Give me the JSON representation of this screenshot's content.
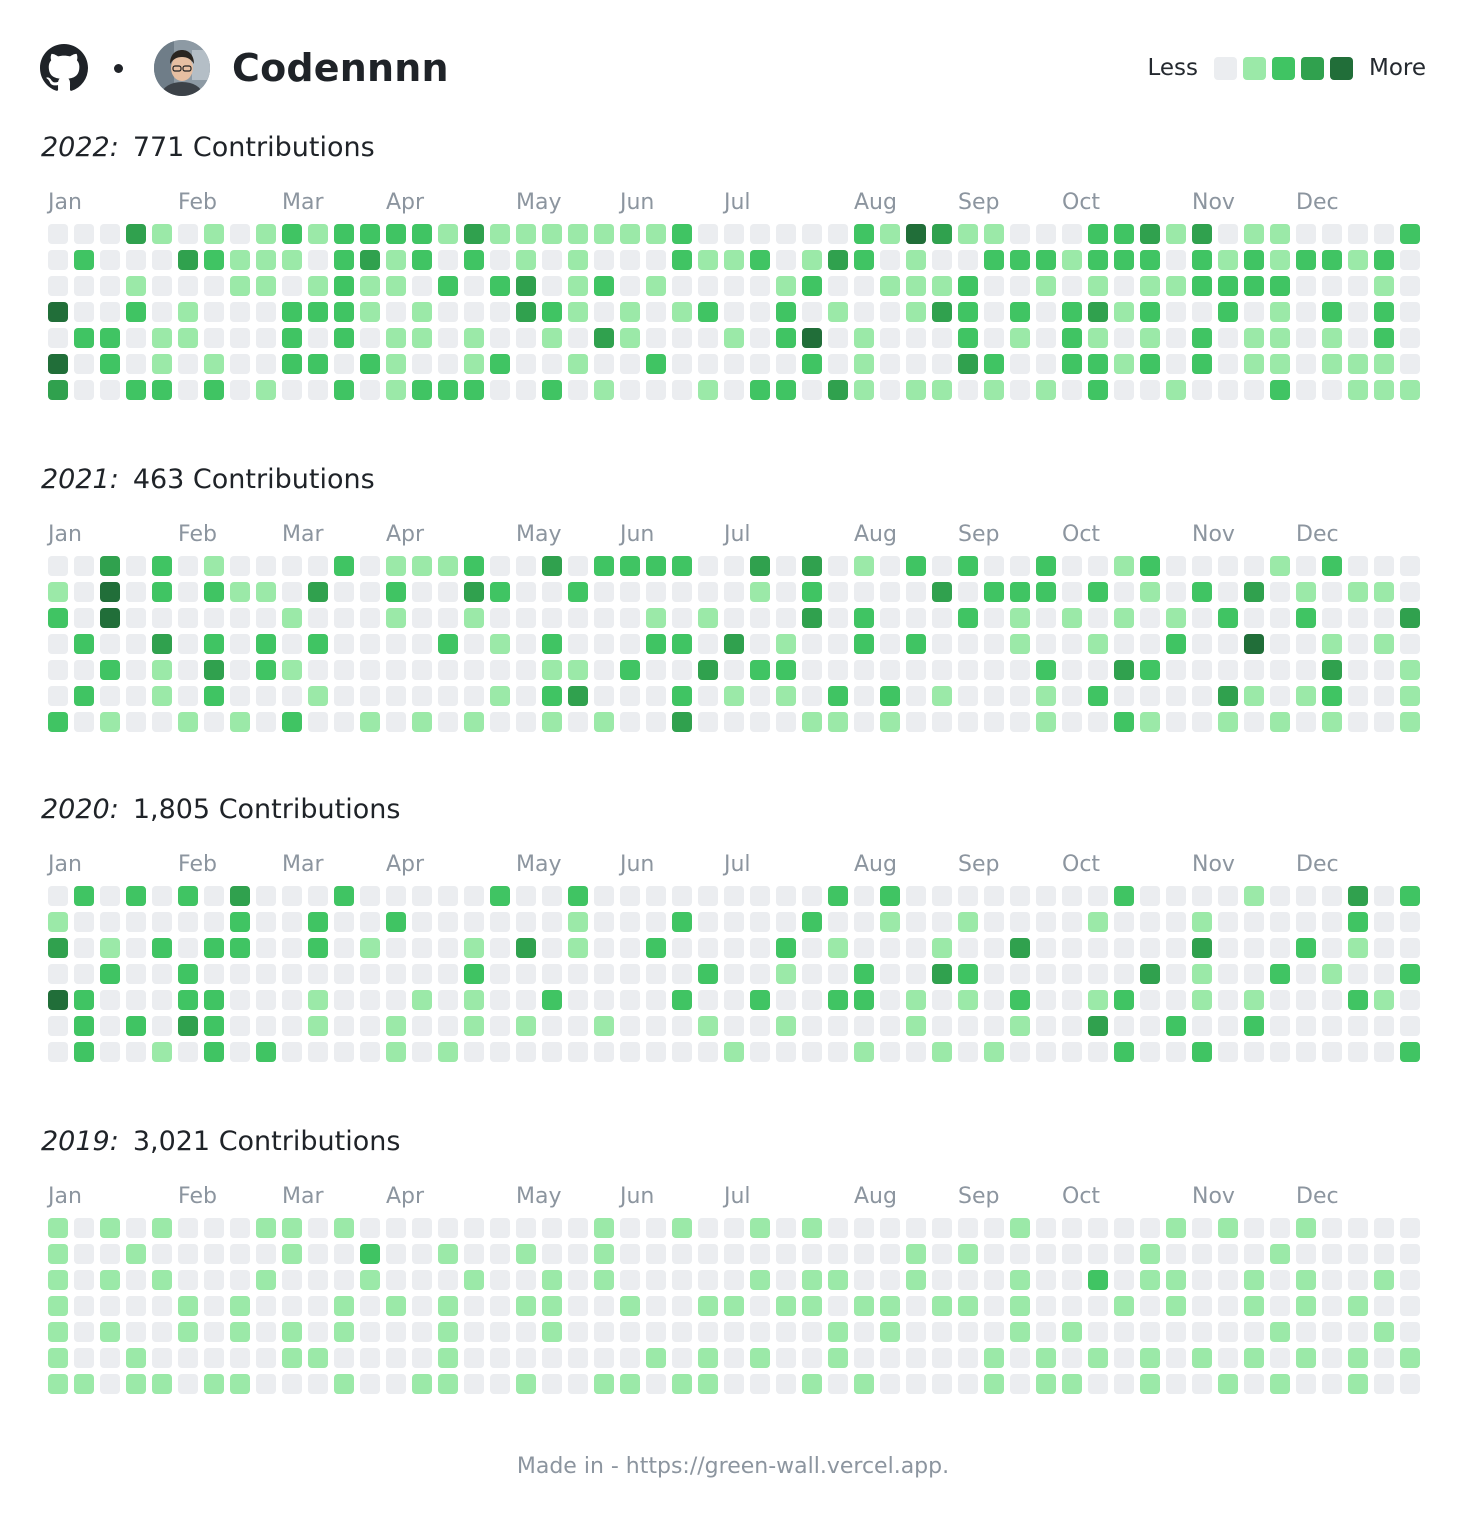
{
  "header": {
    "logo_icon": "github-octocat-icon",
    "username": "Codennnn",
    "avatar_icon": "user-avatar-photo"
  },
  "legend": {
    "less_label": "Less",
    "more_label": "More",
    "colors": [
      "#ebedf0",
      "#9be9a8",
      "#40c463",
      "#30a14e",
      "#216e39"
    ]
  },
  "months": [
    "Jan",
    "Feb",
    "Mar",
    "Apr",
    "May",
    "Jun",
    "Jul",
    "Aug",
    "Sep",
    "Oct",
    "Nov",
    "Dec"
  ],
  "years": [
    {
      "year": "2022:",
      "contributions": "771 Contributions",
      "levels": [
        "...20.0.01011110200000001......103200...11202.00....100103.1021...1..1.0.00....01123100.11100..10100.0",
        ".1...21000.1201.1.0.0...1001.021.0..1110111.10101101.1..21.01.1.0.10.0.1......0...01.11.0..1.11....0..",
        "...0...00.0100.1.12.01.0....01..0001..0.0.001111...0..1101.1...1.11.0.1..0.0.11.0.1...1.02110.10......",
        "3..1.0...1110.0...210.0.01..1.0..021.1.1201..1.0.1.1.0..201.02..000.1..01....0...0.01.12.0..1.0.0..1.",
        ".11.00...1.1.00.0..0.20...0.13.0...1.0.10.0.1.00.0.1.101..0..2.1.1.11.2..1..200.0.0.1.0.0.1.000.200..",
        "3.1.0.0..11.10..01..0..1.....1.0...21..1101.1.00.000.0.12...0.1...00....0..0.1.1..01.01...0.1.1....0.",
        "2..11.1.0..1.0111..1.0...0.11.20.00.0.0.1..0...1..000..11.10.0..0....10..2.1.2.1.1..101..0..1111.1.1."
      ]
    },
    {
      "year": "2021:",
      "contributions": "463 Contributions",
      "levels": [
        "..2.1.0....1.0001..2.1111..2.2.0.1.1..1..01....0.1......2.1.000101101.1....0..11..1.1.1.11..1.111.00.",
        "0.3.1.100.2..1..21..1......0.1....2.111.1.0.1.2.0.00....0...0...1..1....0...0.1..1...1..0........0..1",
        "1.3......0...0..0......0.0...2.1...1.0.0.0.0.1..1...21.0.2.22..0...1.....1...0...1....0..0.0.....1.1",
        ".1..2.1.1.1....1.0.1...11.2.0..1.1...0..0..1..3..0.0.0..1.0..0.20..11..1.0.1.2.....1.1.1...1..1...01",
        "..1.0.2.10.........00.1..2.11.........1..21......2..0.0....0.........10.1.........1...1.0..0.1..0.1.",
        ".1..0.1...0......0.12...1.0.0.1.1.0...0.1....20.01..0..0.0.........0.0.01.0..1.10....2...0.01..20.0.",
        "1.0..0.0.1..0.0.0..0.0..2....00.0.....0..10..0.0.0..0.......0....1.1..1..2...2..1..11..2.0...1.....0"
      ]
    },
    {
      "year": "2020:",
      "contributions": "1,805 Contributions",
      "levels": [
        ".1.1.1.2...1.....1..1.........1.1........1....0...2.1.0....1.3...1....0..1.1..1.1.......0.0.1.0..0.0",
        "0......1..1..1......0...1....1..0..0....0...0.....1..1....2..0..0....0.........1..1....1..0.......0.",
        "2.0.1.11..1.0...0.2.0..1....1.0...0..2......2...1.0..0...0..0..0.....0..0.0....2.1.1.0..1..0...1..0.",
        "..1..1..........1........1..0..1..21......2.0..1.0..1.0.0...1..1.1..1..1.1...1....1..1.0.0.0....1.1.",
        "31...11...0...0.0..1....1..1..11.0.0.1..01..0.0...10.0.0..2.0.1.1...0.1.0..1..0.0.0.0.0....0....1..0",
        ".1.1.21...0..0..0.0..0...0..0....0...0..2..1..1......1.0...0..1...10.0...1.0.1...2....1......0..1...",
        ".1..0.1.1....0.0..........0....0..0.0....1..1.......1........0.0.0....1..0......0.......0.0..1.10..0"
      ]
    },
    {
      "year": "2019:",
      "contributions": "3,021 Contributions",
      "levels": [
        "0.0.0...00.0.........0..0..0.0.......0.....0.0..0.......0.......1.1.2.1.1.1.01.1.1.11101.1.3.1.1.1..",
        "0..0.....0..1..0..0..0...........0.0......0....0.....0......0..1.0.1.1..10.1.1.1.0....1.2.1.1....0.1",
        "0.0.0...0...0...0..0.0.....0.00..0...0..1.00..0.0..0.....0.......1.1.1.1.1...1.1.2.0.1.1.3.2.1.1..0.",
        "0....0.0...0.0.0..00..0..00.00.00.00.0...0.0..0.0.0...0..0.0.0...01..1..1.1..0.1.1.1...0..0..2.1.1.1",
        "0.0..0.0.0.0...0...0..........0.0....0.0.......0...0.0......0..1.1.1..1..0.0.1.2.1.0.0.0.1....0.0..0",
        "0..0.....00....0.......0.0.0..0.....0.0.0.0.0.0.0.0.0...0.0.0...0.1..1.1.1.1..0.10.01.1..1..10..1..1",
        "00.00.00...0..00..0..00.00...0.0....0.00..0..0.0..0..00..0...1.1.1..1.01.1.1.1.1.1.11.1.1.....01.0.."
      ]
    }
  ],
  "footer": "Made in - https://green-wall.vercel.app."
}
